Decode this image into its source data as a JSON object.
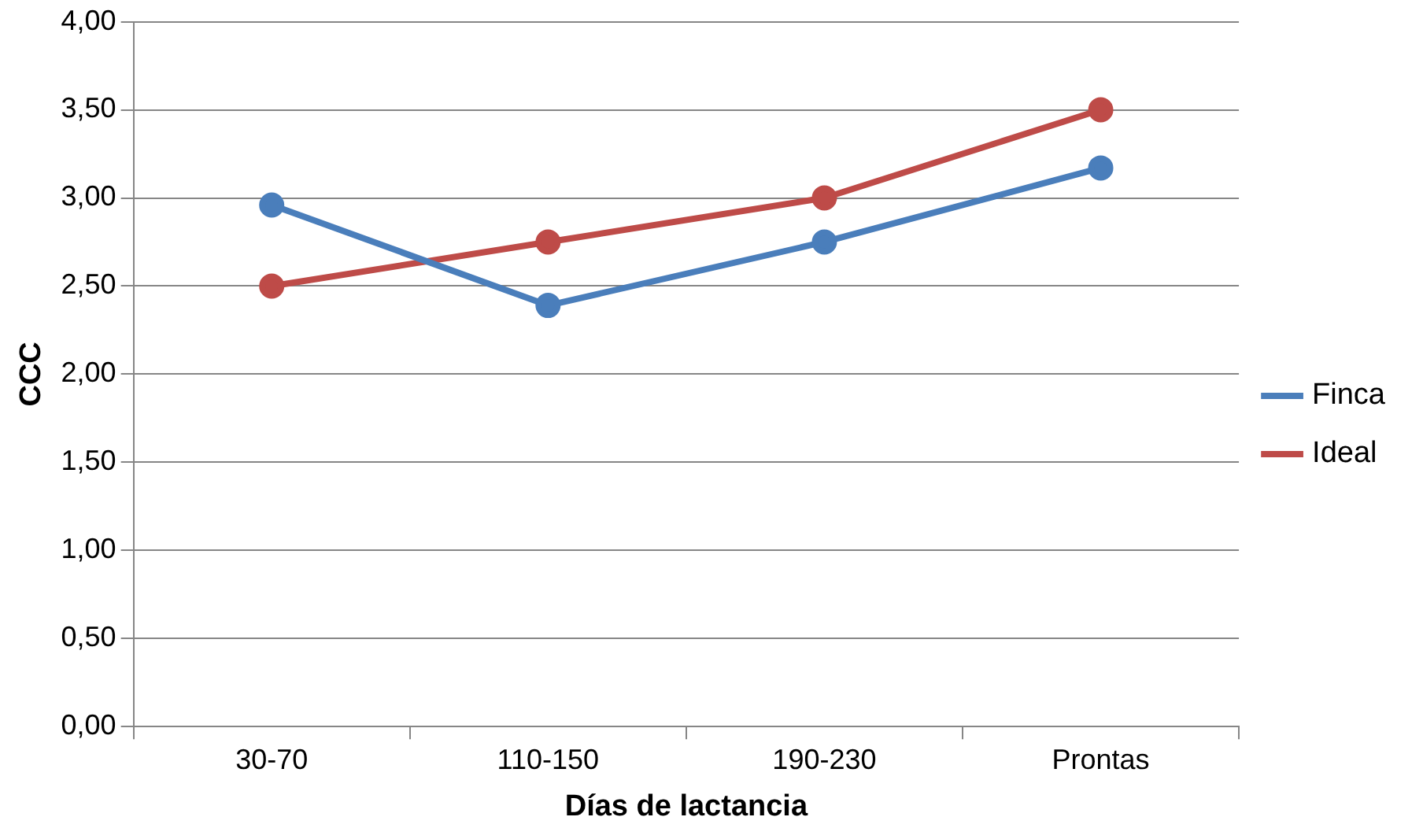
{
  "chart_data": {
    "type": "line",
    "xlabel": "Días de lactancia",
    "ylabel": "CCC",
    "categories": [
      "30-70",
      "110-150",
      "190-230",
      "Prontas"
    ],
    "series": [
      {
        "name": "Finca",
        "color": "#4a7ebb",
        "values": [
          2.96,
          2.39,
          2.75,
          3.17
        ]
      },
      {
        "name": "Ideal",
        "color": "#be4b48",
        "values": [
          2.5,
          2.75,
          3.0,
          3.5
        ]
      }
    ],
    "ylim": [
      0,
      4
    ],
    "yticks": [
      {
        "value": 0,
        "label": "0,00"
      },
      {
        "value": 0.5,
        "label": "0,50"
      },
      {
        "value": 1,
        "label": "1,00"
      },
      {
        "value": 1.5,
        "label": "1,50"
      },
      {
        "value": 2,
        "label": "2,00"
      },
      {
        "value": 2.5,
        "label": "2,50"
      },
      {
        "value": 3,
        "label": "3,00"
      },
      {
        "value": 3.5,
        "label": "3,50"
      },
      {
        "value": 4,
        "label": "4,00"
      }
    ],
    "grid": "y",
    "legend": "right",
    "marker": "circle",
    "line_style": "solid"
  }
}
